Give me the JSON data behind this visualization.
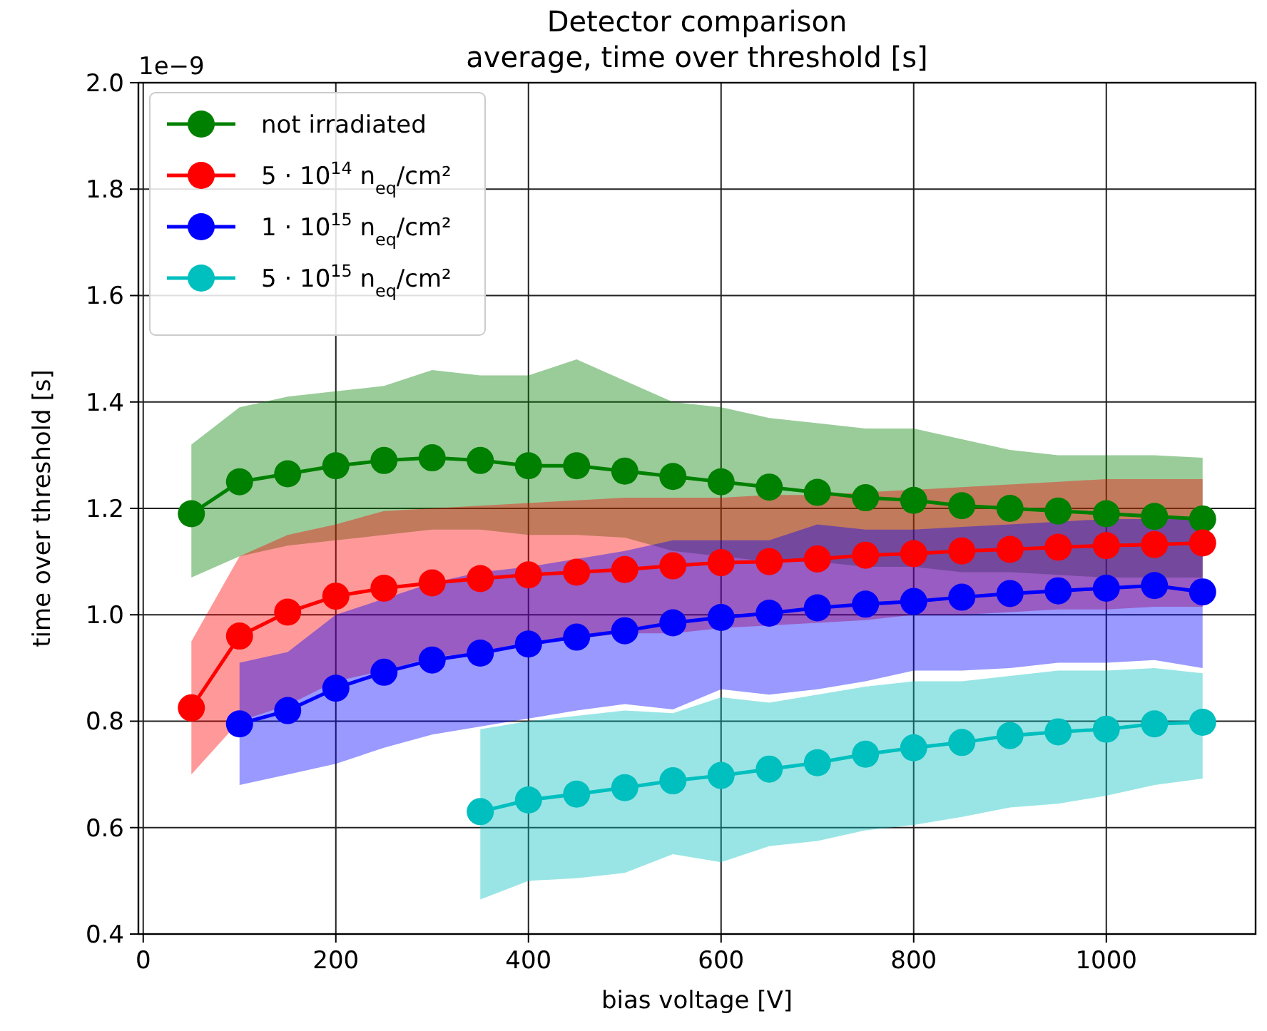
{
  "chart_data": {
    "type": "line",
    "title": "Detector comparison",
    "subtitle": "average, time over threshold [s]",
    "xlabel": "bias voltage [V]",
    "ylabel": "time over threshold [s]",
    "annotations": [
      "1e−9"
    ],
    "xlim": [
      -5,
      1155
    ],
    "xticks": [
      0,
      200,
      400,
      600,
      800,
      1000
    ],
    "ylim": [
      0.4,
      2.0
    ],
    "yticks": [
      0.4,
      0.6,
      0.8,
      {
        "value": 1,
        "label": "1.0"
      },
      1.2,
      1.4,
      1.6,
      1.8,
      {
        "value": 2,
        "label": "2.0"
      }
    ],
    "grid": true,
    "legend": "top left",
    "marker": "circle",
    "line_style": "solid",
    "series": [
      {
        "name": "not irradiated",
        "color": "#008000",
        "x": [
          50,
          100,
          150,
          200,
          250,
          300,
          350,
          400,
          450,
          500,
          550,
          600,
          650,
          700,
          750,
          800,
          850,
          900,
          950,
          1000,
          1050,
          1100
        ],
        "values": [
          1.19,
          1.25,
          1.265,
          1.28,
          1.29,
          1.295,
          1.29,
          1.28,
          1.28,
          1.27,
          1.26,
          1.25,
          1.24,
          1.23,
          1.22,
          1.215,
          1.205,
          1.2,
          1.195,
          1.19,
          1.185,
          1.18
        ],
        "upper": [
          1.32,
          1.39,
          1.41,
          1.42,
          1.43,
          1.46,
          1.45,
          1.45,
          1.48,
          1.44,
          1.4,
          1.39,
          1.37,
          1.36,
          1.35,
          1.35,
          1.33,
          1.31,
          1.3,
          1.3,
          1.3,
          1.295
        ],
        "lower": [
          1.07,
          1.11,
          1.13,
          1.14,
          1.15,
          1.16,
          1.16,
          1.15,
          1.15,
          1.145,
          1.12,
          1.11,
          1.1,
          1.1,
          1.09,
          1.09,
          1.08,
          1.08,
          1.075,
          1.07,
          1.07,
          1.07
        ]
      },
      {
        "name": "5 · 10$^{14}$ n$_{eq}$/cm²",
        "color": "#ff0000",
        "x": [
          50,
          100,
          150,
          200,
          250,
          300,
          350,
          400,
          450,
          500,
          550,
          600,
          650,
          700,
          750,
          800,
          850,
          900,
          950,
          1000,
          1050,
          1100
        ],
        "values": [
          0.825,
          0.96,
          1.005,
          1.035,
          1.05,
          1.06,
          1.068,
          1.075,
          1.08,
          1.085,
          1.092,
          1.098,
          1.1,
          1.105,
          1.112,
          1.115,
          1.12,
          1.123,
          1.127,
          1.13,
          1.132,
          1.135
        ],
        "upper": [
          0.95,
          1.11,
          1.15,
          1.17,
          1.195,
          1.2,
          1.205,
          1.21,
          1.215,
          1.22,
          1.22,
          1.22,
          1.225,
          1.225,
          1.23,
          1.235,
          1.24,
          1.245,
          1.25,
          1.255,
          1.255,
          1.255
        ],
        "lower": [
          0.7,
          0.8,
          0.83,
          0.875,
          0.895,
          0.92,
          0.93,
          0.95,
          0.955,
          0.965,
          0.965,
          0.975,
          0.98,
          0.985,
          0.99,
          1.0,
          1.0,
          1.005,
          1.01,
          1.01,
          1.015,
          1.015
        ]
      },
      {
        "name": "1 · 10$^{15}$ n$_{eq}$/cm²",
        "color": "#0000ff",
        "x": [
          100,
          150,
          200,
          250,
          300,
          350,
          400,
          450,
          500,
          550,
          600,
          650,
          700,
          750,
          800,
          850,
          900,
          950,
          1000,
          1050,
          1100
        ],
        "values": [
          0.795,
          0.82,
          0.862,
          0.892,
          0.915,
          0.928,
          0.945,
          0.958,
          0.97,
          0.985,
          0.995,
          1.003,
          1.013,
          1.02,
          1.025,
          1.033,
          1.04,
          1.045,
          1.05,
          1.055,
          1.043
        ],
        "upper": [
          0.91,
          0.93,
          1.0,
          1.03,
          1.06,
          1.08,
          1.09,
          1.105,
          1.12,
          1.14,
          1.14,
          1.14,
          1.17,
          1.16,
          1.16,
          1.165,
          1.17,
          1.175,
          1.18,
          1.18,
          1.18
        ],
        "lower": [
          0.68,
          0.7,
          0.72,
          0.75,
          0.775,
          0.79,
          0.805,
          0.82,
          0.832,
          0.822,
          0.86,
          0.85,
          0.86,
          0.875,
          0.895,
          0.895,
          0.9,
          0.91,
          0.91,
          0.915,
          0.9
        ]
      },
      {
        "name": "5 · 10$^{15}$ n$_{eq}$/cm²",
        "color": "#00bfbf",
        "x": [
          350,
          400,
          450,
          500,
          550,
          600,
          650,
          700,
          750,
          800,
          850,
          900,
          950,
          1000,
          1050,
          1100
        ],
        "values": [
          0.63,
          0.652,
          0.663,
          0.675,
          0.688,
          0.698,
          0.71,
          0.722,
          0.738,
          0.75,
          0.76,
          0.773,
          0.78,
          0.785,
          0.795,
          0.798
        ],
        "upper": [
          0.785,
          0.8,
          0.81,
          0.82,
          0.815,
          0.845,
          0.835,
          0.85,
          0.865,
          0.875,
          0.875,
          0.885,
          0.895,
          0.895,
          0.9,
          0.89
        ],
        "lower": [
          0.465,
          0.5,
          0.505,
          0.515,
          0.55,
          0.535,
          0.565,
          0.575,
          0.595,
          0.605,
          0.62,
          0.638,
          0.645,
          0.66,
          0.68,
          0.692
        ]
      }
    ]
  }
}
